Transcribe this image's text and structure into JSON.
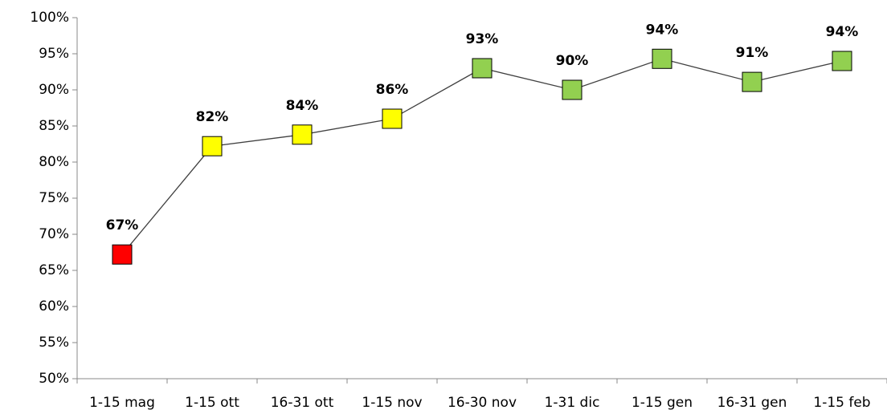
{
  "chart_data": {
    "type": "line",
    "categories": [
      "1-15 mag",
      "1-15 ott",
      "16-31 ott",
      "1-15 nov",
      "16-30 nov",
      "1-31 dic",
      "1-15 gen",
      "16-31 gen",
      "1-15 feb"
    ],
    "values": [
      67.2,
      82.2,
      83.8,
      86.0,
      93.0,
      90.0,
      94.3,
      91.1,
      94.0
    ],
    "value_labels": [
      "67%",
      "82%",
      "84%",
      "86%",
      "93%",
      "90%",
      "94%",
      "91%",
      "94%"
    ],
    "point_colors": [
      "#ff0000",
      "#ffff00",
      "#ffff00",
      "#ffff00",
      "#92d050",
      "#92d050",
      "#92d050",
      "#92d050",
      "#92d050"
    ],
    "line_color": "#404040",
    "ylim": [
      50,
      100
    ],
    "yticks": [
      {
        "value": 50,
        "label": "50%"
      },
      {
        "value": 55,
        "label": "55%"
      },
      {
        "value": 60,
        "label": "60%"
      },
      {
        "value": 65,
        "label": "65%"
      },
      {
        "value": 70,
        "label": "70%"
      },
      {
        "value": 75,
        "label": "75%"
      },
      {
        "value": 80,
        "label": "80%"
      },
      {
        "value": 85,
        "label": "85%"
      },
      {
        "value": 90,
        "label": "90%"
      },
      {
        "value": 95,
        "label": "95%"
      },
      {
        "value": 100,
        "label": "100%"
      }
    ],
    "grid": false
  }
}
